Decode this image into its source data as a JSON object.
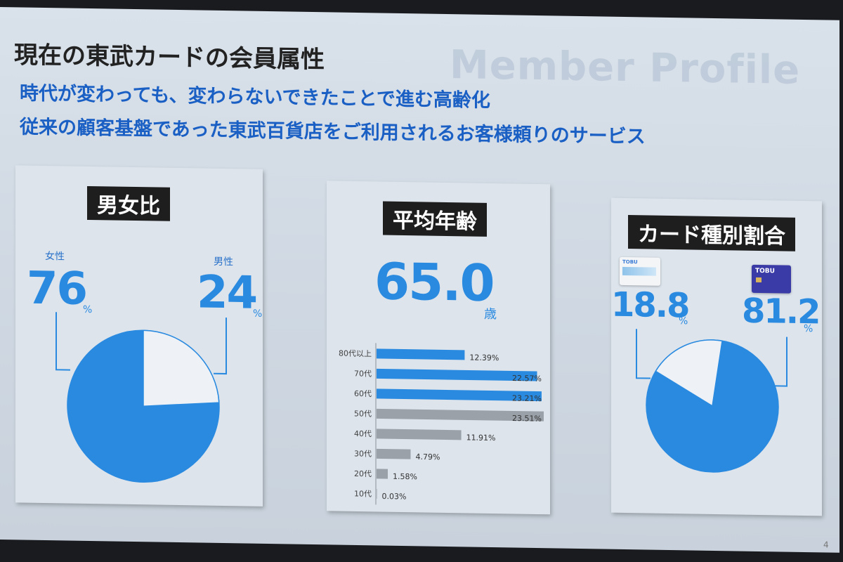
{
  "bg_word": "Member Profile",
  "title": "現在の東武カードの会員属性",
  "subtitle1": "時代が変わっても、変わらないできたことで進む高齢化",
  "subtitle2": "従来の顧客基盤であった東武百貨店をご利用されるお客様頼りのサービス",
  "page_number": "4",
  "colors": {
    "accent": "#2a8ae0",
    "gray_bar": "#9aa1a8",
    "heading": "#1a5fc4"
  },
  "panel1": {
    "tag": "男女比",
    "female_label": "女性",
    "female_value": "76",
    "female_unit": "%",
    "male_label": "男性",
    "male_value": "24",
    "male_unit": "%"
  },
  "panel2": {
    "tag": "平均年齢",
    "avg_value": "65.0",
    "avg_unit": "歳"
  },
  "panel3": {
    "tag": "カード種別割合",
    "left_value": "18.8",
    "left_unit": "%",
    "right_value": "81.2",
    "right_unit": "%",
    "card_left_text": "TOBU",
    "card_right_text": "TOBU"
  },
  "chart_data": [
    {
      "type": "pie",
      "categories": [
        "女性",
        "男性"
      ],
      "values": [
        76,
        24
      ],
      "title": "男女比"
    },
    {
      "type": "bar",
      "orientation": "horizontal",
      "title": "平均年齢",
      "categories": [
        "80代以上",
        "70代",
        "60代",
        "50代",
        "40代",
        "30代",
        "20代",
        "10代"
      ],
      "values": [
        12.39,
        22.57,
        23.21,
        23.51,
        11.91,
        4.79,
        1.58,
        0.03
      ],
      "labels": [
        "12.39%",
        "22.57%",
        "23.21%",
        "23.51%",
        "11.91%",
        "4.79%",
        "1.58%",
        "0.03%"
      ],
      "highlight": [
        true,
        true,
        true,
        false,
        false,
        false,
        false,
        false
      ],
      "xlim": [
        0,
        23.51
      ]
    },
    {
      "type": "pie",
      "categories": [
        "card_a",
        "card_b"
      ],
      "values": [
        18.8,
        81.2
      ],
      "title": "カード種別割合"
    }
  ]
}
